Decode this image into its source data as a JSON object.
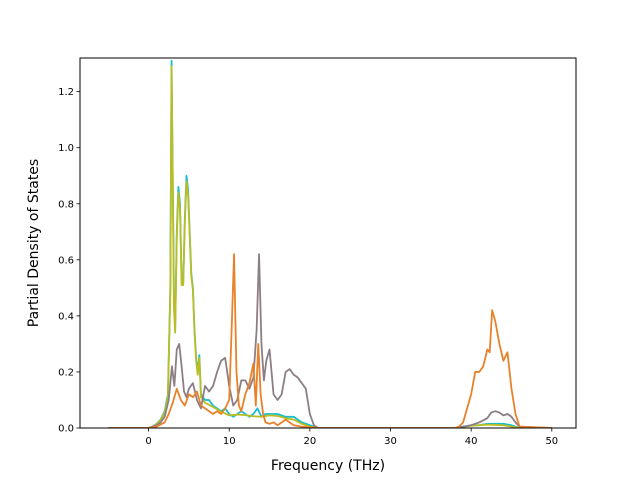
{
  "chart_data": {
    "type": "line",
    "xlabel": "Frequency (THz)",
    "ylabel": "Partial Density of States",
    "xlim": [
      -8.5,
      53
    ],
    "ylim": [
      0,
      1.32
    ],
    "xticks": [
      0,
      10,
      20,
      30,
      40,
      50
    ],
    "yticks": [
      0.0,
      0.2,
      0.4,
      0.6,
      0.8,
      1.0,
      1.2
    ],
    "grid": false,
    "series": [
      {
        "color": "#17becf",
        "x": [
          -5,
          0,
          0.5,
          1,
          1.5,
          2,
          2.4,
          2.7,
          2.85,
          3.0,
          3.15,
          3.3,
          3.5,
          3.7,
          3.9,
          4.1,
          4.3,
          4.5,
          4.7,
          4.9,
          5.1,
          5.3,
          5.5,
          5.7,
          5.9,
          6.1,
          6.3,
          6.5,
          7,
          7.5,
          8,
          8.5,
          9,
          9.5,
          10,
          10.5,
          11,
          11.5,
          12,
          12.5,
          13,
          13.5,
          14,
          14.5,
          15,
          16,
          17,
          18,
          19,
          20,
          20.5,
          21,
          30,
          38,
          39,
          40,
          41,
          42,
          43,
          44,
          45,
          45.5,
          46,
          50
        ],
        "values": [
          0,
          0,
          0.005,
          0.015,
          0.03,
          0.06,
          0.12,
          0.5,
          1.31,
          0.9,
          0.45,
          0.35,
          0.7,
          0.86,
          0.8,
          0.52,
          0.52,
          0.75,
          0.9,
          0.85,
          0.7,
          0.55,
          0.5,
          0.35,
          0.25,
          0.2,
          0.26,
          0.12,
          0.1,
          0.1,
          0.08,
          0.07,
          0.06,
          0.07,
          0.05,
          0.04,
          0.05,
          0.06,
          0.05,
          0.04,
          0.05,
          0.07,
          0.04,
          0.05,
          0.05,
          0.05,
          0.04,
          0.04,
          0.02,
          0.01,
          0.005,
          0,
          0,
          0,
          0.005,
          0.01,
          0.01,
          0.015,
          0.015,
          0.015,
          0.01,
          0.005,
          0,
          0
        ]
      },
      {
        "color": "#bcbd22",
        "x": [
          -5,
          0,
          0.5,
          1,
          1.5,
          2,
          2.4,
          2.7,
          2.85,
          3.0,
          3.15,
          3.3,
          3.5,
          3.7,
          3.9,
          4.1,
          4.3,
          4.5,
          4.7,
          4.9,
          5.1,
          5.3,
          5.5,
          5.7,
          5.9,
          6.1,
          6.3,
          6.5,
          7,
          8,
          9,
          10,
          11,
          12,
          13,
          14,
          15,
          16,
          17,
          18,
          19,
          20,
          21,
          30,
          38,
          40,
          42,
          44,
          46,
          50
        ],
        "values": [
          0,
          0,
          0.005,
          0.014,
          0.028,
          0.055,
          0.11,
          0.48,
          1.29,
          0.88,
          0.43,
          0.34,
          0.68,
          0.84,
          0.78,
          0.51,
          0.51,
          0.73,
          0.88,
          0.83,
          0.69,
          0.54,
          0.49,
          0.34,
          0.24,
          0.19,
          0.25,
          0.11,
          0.09,
          0.075,
          0.058,
          0.045,
          0.048,
          0.046,
          0.042,
          0.04,
          0.045,
          0.043,
          0.035,
          0.03,
          0.015,
          0.005,
          0,
          0,
          0,
          0.008,
          0.012,
          0.01,
          0,
          0
        ]
      },
      {
        "color": "#8c7e85",
        "x": [
          -5,
          0,
          1,
          1.5,
          2,
          2.5,
          2.9,
          3.2,
          3.5,
          3.8,
          4.1,
          4.4,
          4.7,
          5.0,
          5.5,
          6,
          6.5,
          7,
          7.5,
          8,
          8.5,
          9,
          9.5,
          10,
          10.5,
          11,
          11.5,
          12,
          12.5,
          13,
          13.4,
          13.7,
          14,
          14.3,
          14.6,
          15,
          15.5,
          16,
          16.5,
          17,
          17.5,
          18,
          18.5,
          19,
          19.5,
          20,
          20.5,
          21,
          30,
          38,
          39,
          40,
          41,
          42,
          42.5,
          43,
          43.5,
          44,
          44.5,
          45,
          45.5,
          46,
          50
        ],
        "values": [
          0,
          0,
          0.01,
          0.02,
          0.04,
          0.1,
          0.22,
          0.15,
          0.28,
          0.3,
          0.22,
          0.13,
          0.11,
          0.14,
          0.16,
          0.1,
          0.07,
          0.15,
          0.13,
          0.15,
          0.2,
          0.24,
          0.25,
          0.15,
          0.08,
          0.1,
          0.17,
          0.17,
          0.14,
          0.18,
          0.35,
          0.62,
          0.3,
          0.17,
          0.24,
          0.28,
          0.12,
          0.1,
          0.12,
          0.2,
          0.21,
          0.19,
          0.18,
          0.16,
          0.14,
          0.05,
          0.01,
          0,
          0,
          0,
          0.005,
          0.01,
          0.02,
          0.035,
          0.055,
          0.06,
          0.055,
          0.045,
          0.05,
          0.04,
          0.02,
          0.005,
          0
        ]
      },
      {
        "color": "#e8822a",
        "x": [
          -5,
          0,
          1,
          2,
          2.5,
          3,
          3.5,
          4,
          4.5,
          5,
          5.5,
          6,
          6.5,
          7,
          7.5,
          8,
          8.5,
          9,
          9.5,
          10,
          10.3,
          10.6,
          10.9,
          11.2,
          11.5,
          12,
          12.5,
          13,
          13.3,
          13.6,
          13.9,
          14.2,
          14.5,
          15,
          15.5,
          16,
          17,
          18,
          19,
          20,
          21,
          30,
          38,
          38.5,
          39,
          39.5,
          40,
          40.5,
          41,
          41.5,
          42,
          42.3,
          42.6,
          43,
          43.5,
          44,
          44.5,
          45,
          45.5,
          46,
          50
        ],
        "values": [
          0,
          0,
          0.005,
          0.02,
          0.05,
          0.09,
          0.14,
          0.1,
          0.08,
          0.12,
          0.11,
          0.13,
          0.08,
          0.07,
          0.06,
          0.05,
          0.06,
          0.05,
          0.07,
          0.1,
          0.35,
          0.62,
          0.2,
          0.08,
          0.06,
          0.12,
          0.16,
          0.23,
          0.08,
          0.3,
          0.12,
          0.05,
          0.02,
          0.015,
          0.02,
          0.01,
          0.03,
          0.01,
          0.005,
          0.002,
          0,
          0,
          0,
          0.005,
          0.02,
          0.07,
          0.12,
          0.2,
          0.2,
          0.22,
          0.28,
          0.27,
          0.42,
          0.38,
          0.3,
          0.24,
          0.27,
          0.14,
          0.05,
          0.005,
          0
        ]
      }
    ]
  }
}
